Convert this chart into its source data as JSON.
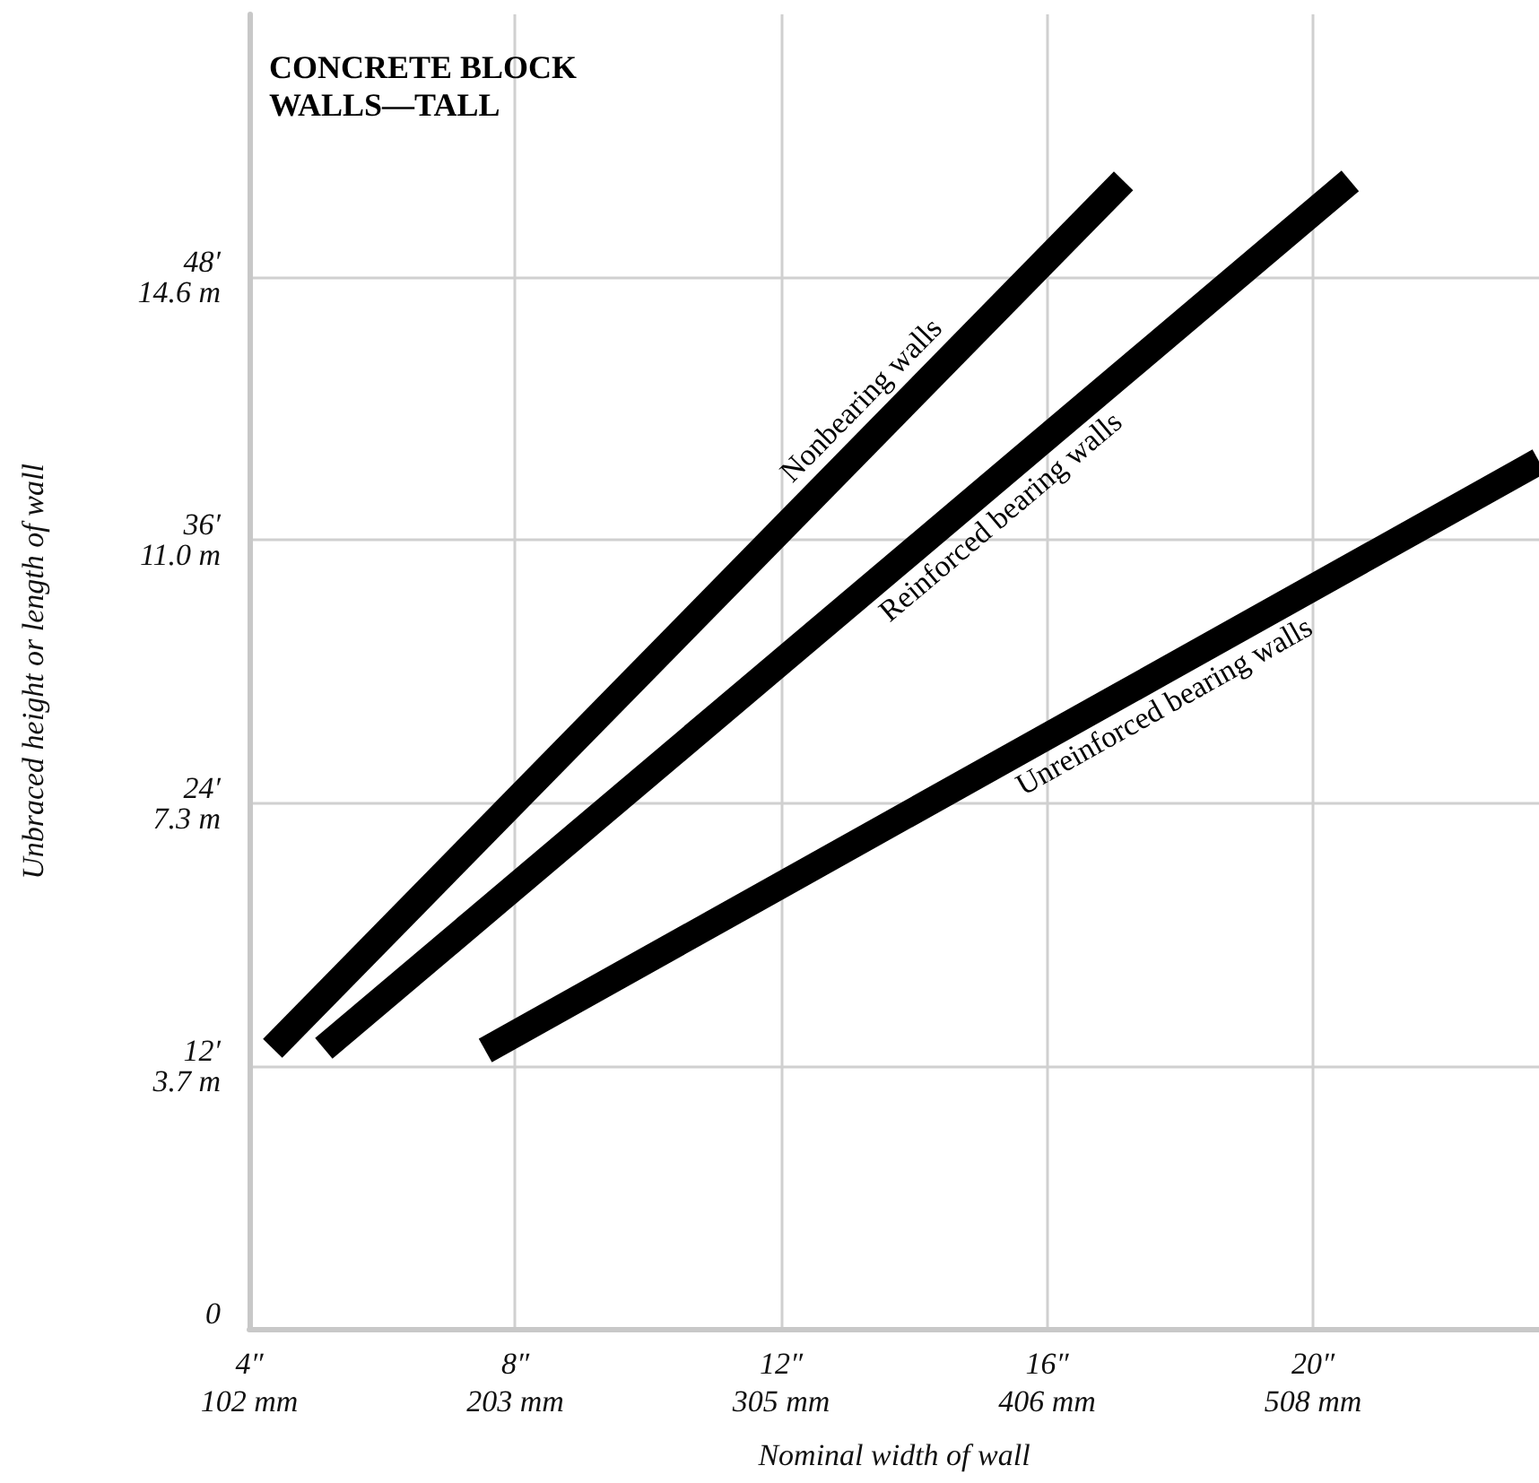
{
  "chart_data": {
    "type": "line",
    "title": "CONCRETE BLOCK\nWALLS—TALL",
    "xlabel": "Nominal width of wall",
    "y2label": "Unbraced height or length of wall",
    "xlim": [
      4,
      23.4
    ],
    "ylim": [
      0,
      60
    ],
    "xticks": [
      {
        "value": 4,
        "label": "4″"
      },
      {
        "value": 8,
        "label": "8″"
      },
      {
        "value": 12,
        "label": "12″"
      },
      {
        "value": 16,
        "label": "16″"
      },
      {
        "value": 20,
        "label": "20″"
      }
    ],
    "x2lim": [
      101.6,
      594.36
    ],
    "x2ticks": [
      {
        "value": 101.6,
        "label": "102 mm"
      },
      {
        "value": 203.2,
        "label": "203 mm"
      },
      {
        "value": 304.8,
        "label": "305 mm"
      },
      {
        "value": 406.4,
        "label": "406 mm"
      },
      {
        "value": 508,
        "label": "508 mm"
      }
    ],
    "yticks": [
      0,
      {
        "value": 12,
        "label": "12′"
      },
      {
        "value": 24,
        "label": "24′"
      },
      {
        "value": 36,
        "label": "36′"
      },
      {
        "value": 48,
        "label": "48′"
      }
    ],
    "y2lim": [
      0,
      18.288
    ],
    "y2ticks": [
      {
        "value": 3.658,
        "label": "3.7 m"
      },
      {
        "value": 7.315,
        "label": "7.3 m"
      },
      {
        "value": 10.973,
        "label": "11.0 m"
      },
      {
        "value": 14.63,
        "label": "14.6 m"
      }
    ],
    "grid": true,
    "legend": false,
    "marker": "none",
    "line_style": "solid",
    "series": [
      {
        "name": "Nonbearing walls",
        "color": "#000000",
        "x": [
          4.35,
          17.15
        ],
        "values": [
          12.8,
          52.4
        ]
      },
      {
        "name": "Reinforced bearing walls",
        "color": "#000000",
        "x": [
          5.12,
          20.56
        ],
        "values": [
          12.8,
          52.4
        ]
      },
      {
        "name": "Unreinforced bearing walls",
        "color": "#000000",
        "x": [
          7.55,
          23.4
        ],
        "values": [
          12.7,
          39.6
        ]
      }
    ]
  }
}
